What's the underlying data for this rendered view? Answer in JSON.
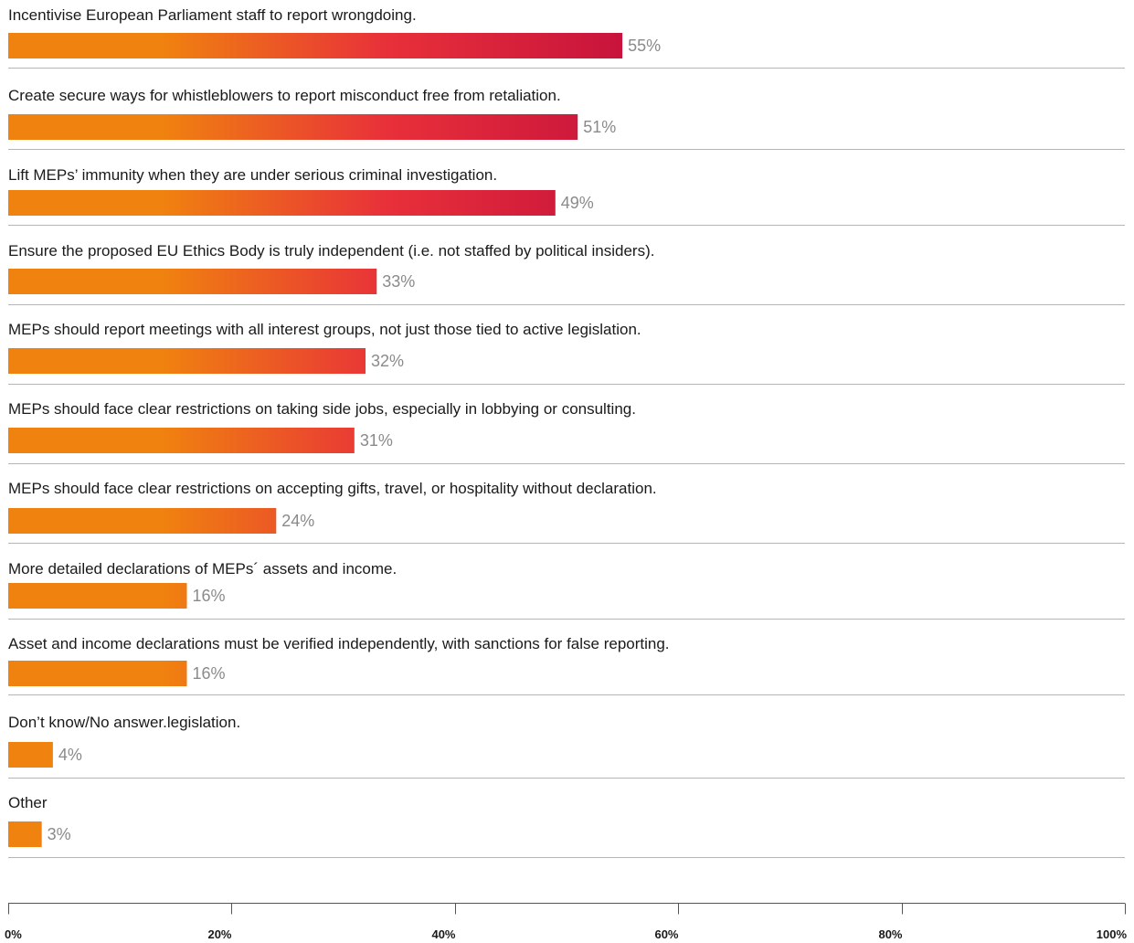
{
  "colors": {
    "bar_start": "#f0820f",
    "bar_mid": "#e8303a",
    "bar_end": "#c8143c"
  },
  "chart_data": {
    "type": "bar",
    "orientation": "horizontal",
    "title": "",
    "xlabel": "",
    "ylabel": "",
    "xlim": [
      0,
      100
    ],
    "value_suffix": "%",
    "grid": false,
    "categories": [
      "Incentivise European Parliament staff to report wrongdoing.",
      "Create secure ways for whistleblowers to report misconduct free from retaliation.",
      "Lift MEPs’ immunity when they are under serious criminal investigation.",
      "Ensure the proposed EU Ethics Body is truly independent (i.e. not staffed by political insiders).",
      "MEPs should report meetings with all interest groups, not just those tied to active legislation.",
      "MEPs should face clear restrictions on taking side jobs, especially in lobbying or consulting.",
      "MEPs should face clear restrictions on accepting gifts, travel, or hospitality without declaration.",
      "More detailed declarations of MEPs´ assets and income.",
      "Asset and income declarations must be verified independently, with sanctions for false reporting.",
      "Don’t know/No answer.legislation.",
      "Other"
    ],
    "values": [
      55,
      51,
      49,
      33,
      32,
      31,
      24,
      16,
      16,
      4,
      3
    ],
    "value_labels": [
      "55%",
      "51%",
      "49%",
      "33%",
      "32%",
      "31%",
      "24%",
      "16%",
      "16%",
      "4%",
      "3%"
    ],
    "x_ticks": [
      0,
      20,
      40,
      60,
      80,
      100
    ],
    "x_tick_labels": [
      "0%",
      "20%",
      "40%",
      "60%",
      "80%",
      "100%"
    ]
  }
}
